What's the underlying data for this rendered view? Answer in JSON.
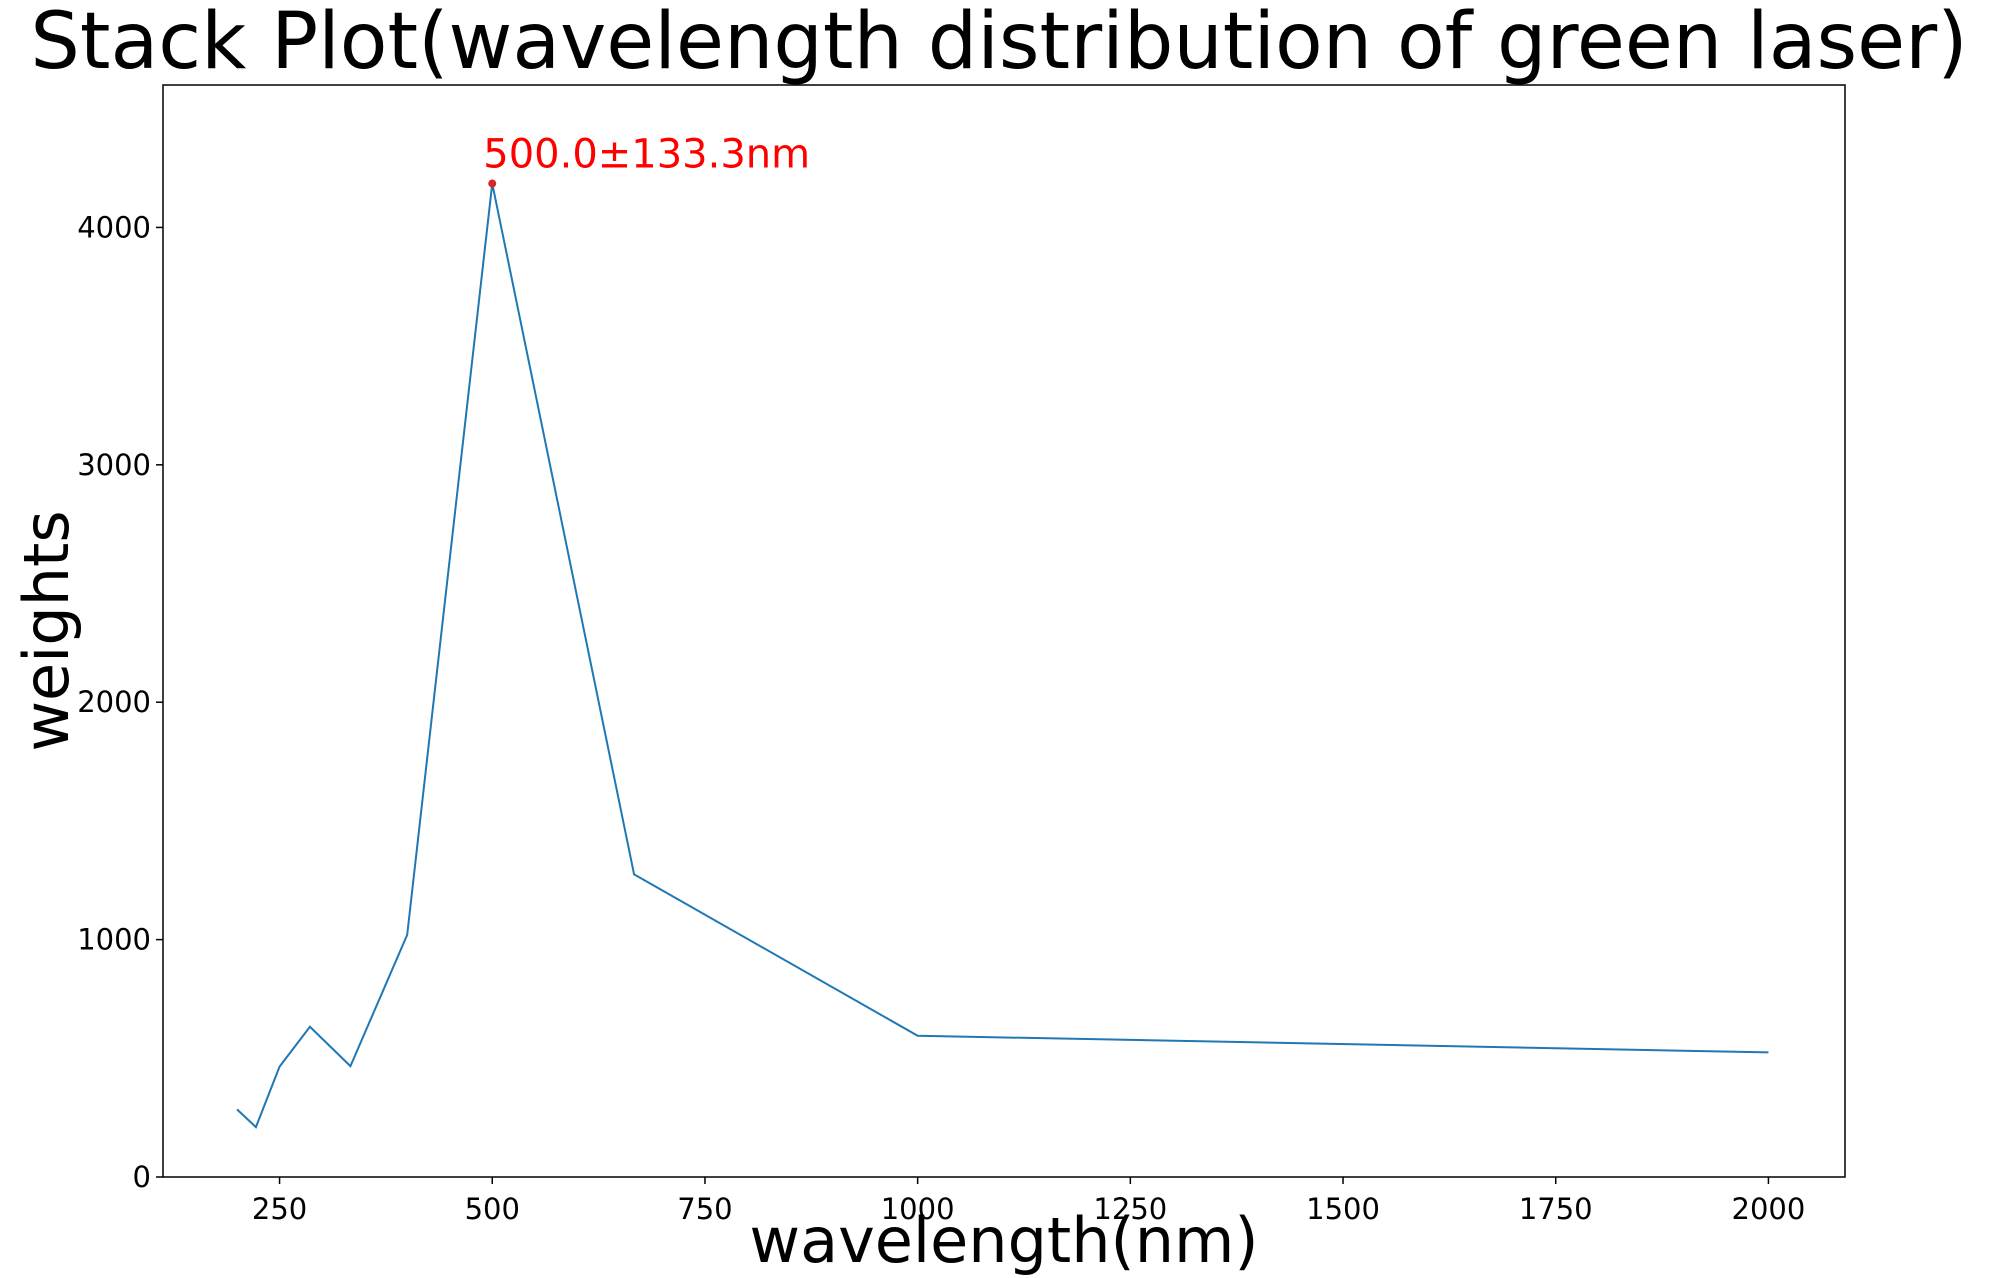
{
  "chart_data": {
    "type": "line",
    "title": "Stack Plot(wavelength distribution of green laser)",
    "xlabel": "wavelength(nm)",
    "ylabel": "weights",
    "xlim": [
      113,
      2090
    ],
    "ylim": [
      0,
      4600
    ],
    "xticks": [
      250,
      500,
      750,
      1000,
      1250,
      1500,
      1750,
      2000
    ],
    "xtick_labels": [
      "250",
      "500",
      "750",
      "1000",
      "1250",
      "1500",
      "1750",
      "2000"
    ],
    "yticks": [
      0,
      1000,
      2000,
      3000,
      4000
    ],
    "ytick_labels": [
      "0",
      "1000",
      "2000",
      "3000",
      "4000"
    ],
    "grid": false,
    "series": [
      {
        "color": "#1f77b4",
        "x": [
          200,
          222.2,
          250,
          285.7,
          333.3,
          400,
          500,
          666.7,
          1000,
          2000
        ],
        "y": [
          285,
          210,
          465,
          633,
          467,
          1020,
          4185,
          1275,
          595,
          525
        ]
      }
    ],
    "annotation": {
      "text": "500.0±133.3nm",
      "x": 500,
      "y": 4185,
      "color": "#ff0000",
      "marker_color": "#d62728"
    }
  }
}
